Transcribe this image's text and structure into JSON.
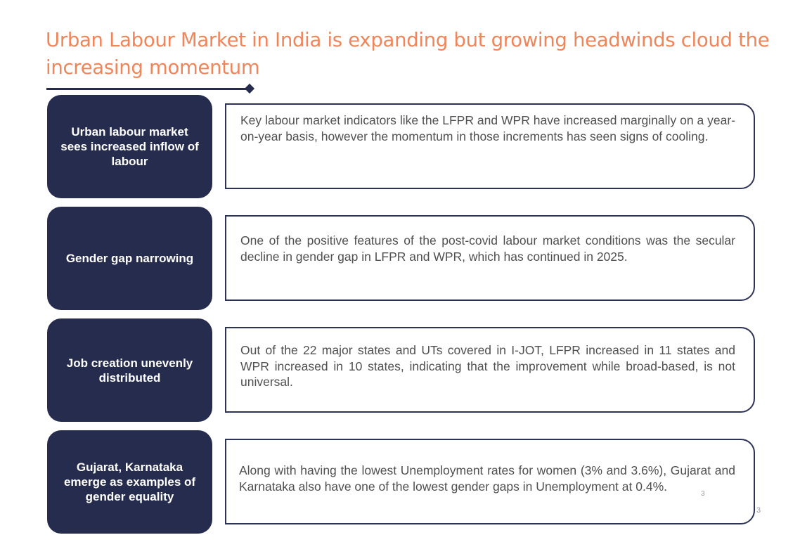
{
  "title": "Urban Labour Market in India is expanding but growing headwinds cloud the increasing momentum",
  "rows": [
    {
      "label": "Urban labour market sees increased inflow of labour",
      "text": "Key labour market indicators like the LFPR and WPR have increased marginally on a year-on-year basis, however the momentum in those increments has seen signs of cooling."
    },
    {
      "label": "Gender gap narrowing",
      "text": "One of the positive features of the post-covid labour market conditions was the secular decline in gender gap in LFPR and WPR, which has continued in 2025."
    },
    {
      "label": "Job creation unevenly distributed",
      "text": "Out of the 22 major states and UTs covered in I-JOT, LFPR increased in 11 states and WPR increased in 10 states, indicating that the improvement while broad-based, is not universal."
    },
    {
      "label": "Gujarat, Karnataka emerge as examples of gender equality",
      "text": "Along with having the lowest Unemployment rates for women (3% and 3.6%), Gujarat and Karnataka also have one of the lowest gender gaps in Unemployment at 0.4%."
    }
  ],
  "page_number_inner": "3",
  "page_number_outer": "3",
  "colors": {
    "title": "#F0855A",
    "navy": "#262C4E",
    "body_text": "#505050"
  }
}
